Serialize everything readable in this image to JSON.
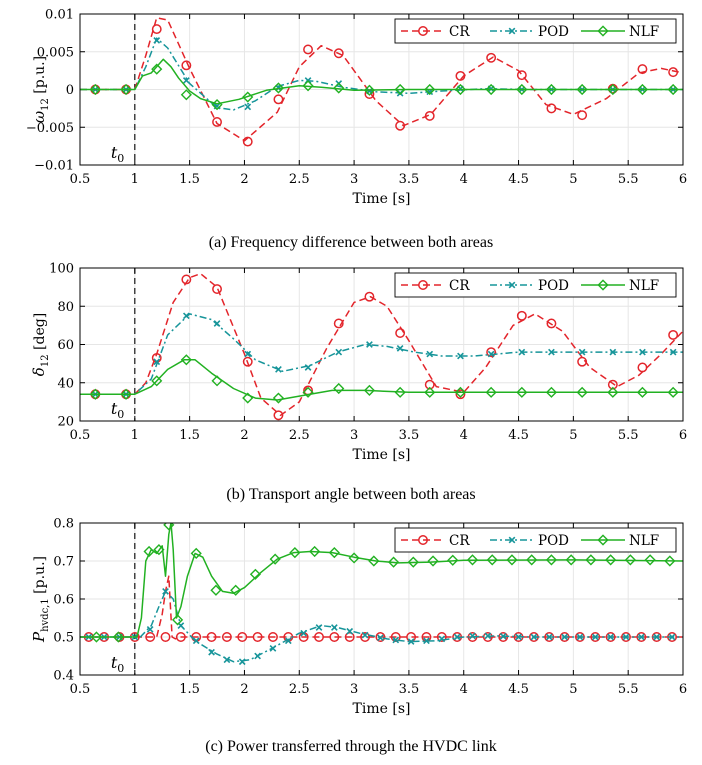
{
  "colors": {
    "CR": "#e3252b",
    "POD": "#17959a",
    "NLF": "#22b122",
    "grid": "#e6e6e6"
  },
  "chart_data": [
    {
      "type": "line",
      "caption": "(a) Frequency difference between both areas",
      "xlabel": "Time [s]",
      "ylabel_main": "ω",
      "ylabel_sub": "12",
      "ylabel_unit": " [p.u.]",
      "xlim": [
        0.5,
        6
      ],
      "ylim": [
        -0.01,
        0.01
      ],
      "xticks": [
        0.5,
        1,
        1.5,
        2,
        2.5,
        3,
        3.5,
        4,
        4.5,
        5,
        5.5,
        6
      ],
      "xticklabels": [
        "0.5",
        "1",
        "1.5",
        "2",
        "2.5",
        "3",
        "3.5",
        "4",
        "4.5",
        "5",
        "5.5",
        "6"
      ],
      "yticks": [
        -0.01,
        -0.005,
        0,
        0.005,
        0.01
      ],
      "yticklabels": [
        "−0.01",
        "−0.005",
        "0",
        "0.005",
        "0.01"
      ],
      "grid": true,
      "legend_position": "top-right",
      "vline_x": 1,
      "vline_label": "t",
      "vline_label_sub": "0",
      "series": [
        {
          "name": "CR",
          "style": "dashed",
          "marker": "circle",
          "x": [
            0.5,
            1,
            1.1,
            1.2,
            1.3,
            1.5,
            1.75,
            2,
            2.3,
            2.5,
            2.7,
            2.9,
            3.2,
            3.45,
            3.7,
            4,
            4.27,
            4.5,
            4.75,
            5,
            5.3,
            5.6,
            5.8,
            6
          ],
          "y": [
            0,
            0,
            0.0045,
            0.0095,
            0.0092,
            0.0028,
            -0.0045,
            -0.0068,
            -0.003,
            0.003,
            0.0058,
            0.0045,
            -0.0015,
            -0.0048,
            -0.0033,
            0.0018,
            0.0043,
            0.0025,
            -0.002,
            -0.0033,
            -0.0012,
            0.0022,
            0.0028,
            0.0022
          ],
          "marker_x": [
            0.64,
            0.92,
            1.2,
            1.47,
            1.75,
            2.03,
            2.31,
            2.58,
            2.86,
            3.14,
            3.42,
            3.69,
            3.97,
            4.25,
            4.53,
            4.8,
            5.08,
            5.36,
            5.63,
            5.91
          ],
          "marker_y": [
            0,
            0,
            0.008,
            0.0032,
            -0.0043,
            -0.0069,
            -0.0013,
            0.0053,
            0.0048,
            -0.0006,
            -0.0048,
            -0.0035,
            0.0018,
            0.0042,
            0.0019,
            -0.0025,
            -0.0034,
            0.0001,
            0.0027,
            0.0023
          ]
        },
        {
          "name": "POD",
          "style": "dashdot",
          "marker": "cross",
          "x": [
            0.5,
            1,
            1.1,
            1.2,
            1.3,
            1.5,
            1.75,
            1.9,
            2.1,
            2.3,
            2.5,
            2.65,
            2.9,
            3.2,
            3.5,
            3.8,
            4.2,
            4.6,
            6
          ],
          "y": [
            0,
            0,
            0.003,
            0.0068,
            0.0055,
            0.0008,
            -0.0024,
            -0.0027,
            -0.0015,
            0.0004,
            0.0012,
            0.0011,
            0.0003,
            -0.0003,
            -0.0005,
            -0.0002,
            0.0001,
            0,
            0
          ],
          "marker_x": [
            0.64,
            0.92,
            1.2,
            1.47,
            1.75,
            2.03,
            2.31,
            2.58,
            2.86,
            3.14,
            3.42,
            3.69,
            3.97,
            4.25,
            4.53,
            4.8,
            5.08,
            5.36,
            5.63,
            5.91
          ],
          "marker_y": [
            0,
            0,
            0.0065,
            0.0012,
            -0.0022,
            -0.0023,
            0.0002,
            0.0012,
            0.0008,
            -0.0002,
            -0.0005,
            -0.0003,
            0.0001,
            0.0001,
            0,
            0,
            0,
            0,
            0,
            0
          ]
        },
        {
          "name": "NLF",
          "style": "solid",
          "marker": "diamond",
          "x": [
            0.5,
            1,
            1.07,
            1.15,
            1.2,
            1.26,
            1.33,
            1.4,
            1.5,
            1.6,
            1.75,
            1.95,
            2.2,
            2.5,
            2.7,
            3,
            3.5,
            6
          ],
          "y": [
            0,
            0,
            0.0018,
            0.0022,
            0.003,
            0.004,
            0.003,
            0.0015,
            -0.0002,
            -0.0012,
            -0.0019,
            -0.0013,
            -0.0001,
            0.0005,
            0.0003,
            -0.0001,
            0,
            0
          ],
          "marker_x": [
            0.64,
            0.92,
            1.2,
            1.47,
            1.75,
            2.03,
            2.31,
            2.58,
            2.86,
            3.14,
            3.42,
            3.69,
            3.97,
            4.25,
            4.53,
            4.8,
            5.08,
            5.36,
            5.63,
            5.91
          ],
          "marker_y": [
            0,
            0,
            0.0027,
            -0.0007,
            -0.002,
            -0.001,
            0.0002,
            0.0005,
            0.0002,
            -0.0001,
            0,
            0,
            0,
            0,
            0,
            0,
            0,
            0,
            0,
            0
          ]
        }
      ]
    },
    {
      "type": "line",
      "caption": "(b) Transport angle between both areas",
      "xlabel": "Time [s]",
      "ylabel_main": "δ",
      "ylabel_sub": "12",
      "ylabel_unit": " [deg]",
      "xlim": [
        0.5,
        6
      ],
      "ylim": [
        20,
        100
      ],
      "xticks": [
        0.5,
        1,
        1.5,
        2,
        2.5,
        3,
        3.5,
        4,
        4.5,
        5,
        5.5,
        6
      ],
      "xticklabels": [
        "0.5",
        "1",
        "1.5",
        "2",
        "2.5",
        "3",
        "3.5",
        "4",
        "4.5",
        "5",
        "5.5",
        "6"
      ],
      "yticks": [
        20,
        40,
        60,
        80,
        100
      ],
      "yticklabels": [
        "20",
        "40",
        "60",
        "80",
        "100"
      ],
      "grid": true,
      "legend_position": "top-right",
      "vline_x": 1,
      "vline_label": "t",
      "vline_label_sub": "0",
      "series": [
        {
          "name": "CR",
          "style": "dashed",
          "marker": "circle",
          "x": [
            0.5,
            1,
            1.1,
            1.2,
            1.35,
            1.5,
            1.6,
            1.75,
            2,
            2.15,
            2.33,
            2.5,
            2.75,
            3,
            3.15,
            3.3,
            3.5,
            3.75,
            4,
            4.2,
            4.45,
            4.65,
            4.9,
            5.15,
            5.4,
            5.6,
            5.8,
            6
          ],
          "y": [
            34,
            34,
            40,
            55,
            82,
            95,
            97,
            90,
            55,
            32,
            23,
            30,
            58,
            82,
            85,
            80,
            62,
            38,
            35,
            48,
            70,
            76,
            67,
            48,
            38,
            44,
            55,
            67
          ],
          "marker_x": [
            0.64,
            0.92,
            1.2,
            1.47,
            1.75,
            2.03,
            2.31,
            2.58,
            2.86,
            3.14,
            3.42,
            3.69,
            3.97,
            4.25,
            4.53,
            4.8,
            5.08,
            5.36,
            5.63,
            5.91
          ],
          "marker_y": [
            34,
            34,
            53,
            94,
            89,
            51,
            23,
            36,
            71,
            85,
            66,
            39,
            34,
            56,
            75,
            71,
            51,
            39,
            48,
            65
          ]
        },
        {
          "name": "POD",
          "style": "dashdot",
          "marker": "cross",
          "x": [
            0.5,
            1,
            1.15,
            1.3,
            1.5,
            1.7,
            1.9,
            2.1,
            2.35,
            2.6,
            2.85,
            3.1,
            3.3,
            3.55,
            3.8,
            4.1,
            4.5,
            5,
            6
          ],
          "y": [
            34,
            34,
            42,
            65,
            76,
            73,
            63,
            52,
            46,
            49,
            56,
            60,
            59,
            56,
            54,
            54,
            56,
            56,
            56
          ],
          "marker_x": [
            0.64,
            0.92,
            1.2,
            1.47,
            1.75,
            2.03,
            2.31,
            2.58,
            2.86,
            3.14,
            3.42,
            3.69,
            3.97,
            4.25,
            4.53,
            4.8,
            5.08,
            5.36,
            5.63,
            5.91
          ],
          "marker_y": [
            34,
            34,
            51,
            75,
            71,
            55,
            47,
            48,
            56,
            60,
            58,
            55,
            54,
            55,
            56,
            56,
            56,
            56,
            56,
            56
          ]
        },
        {
          "name": "NLF",
          "style": "solid",
          "marker": "diamond",
          "x": [
            0.5,
            1,
            1.15,
            1.3,
            1.45,
            1.55,
            1.7,
            1.9,
            2.1,
            2.3,
            2.5,
            2.8,
            3.1,
            3.5,
            4,
            6
          ],
          "y": [
            34,
            34,
            38,
            47,
            52,
            52,
            45,
            37,
            32,
            31,
            33,
            36,
            36,
            35,
            35,
            35
          ],
          "marker_x": [
            0.64,
            0.92,
            1.2,
            1.47,
            1.75,
            2.03,
            2.31,
            2.58,
            2.86,
            3.14,
            3.42,
            3.69,
            3.97,
            4.25,
            4.53,
            4.8,
            5.08,
            5.36,
            5.63,
            5.91
          ],
          "marker_y": [
            34,
            34,
            41,
            52,
            41,
            32,
            32,
            35,
            37,
            36,
            35,
            35,
            35,
            35,
            35,
            35,
            35,
            35,
            35,
            35
          ]
        }
      ]
    },
    {
      "type": "line",
      "caption": "(c) Power transferred through the HVDC link",
      "xlabel": "Time [s]",
      "ylabel_main": "P",
      "ylabel_sub": "hvdc,1",
      "ylabel_unit": " [p.u.]",
      "xlim": [
        0.5,
        6
      ],
      "ylim": [
        0.4,
        0.8
      ],
      "xticks": [
        0.5,
        1,
        1.5,
        2,
        2.5,
        3,
        3.5,
        4,
        4.5,
        5,
        5.5,
        6
      ],
      "xticklabels": [
        "0.5",
        "1",
        "1.5",
        "2",
        "2.5",
        "3",
        "3.5",
        "4",
        "4.5",
        "5",
        "5.5",
        "6"
      ],
      "yticks": [
        0.4,
        0.5,
        0.6,
        0.7,
        0.8
      ],
      "yticklabels": [
        "0.4",
        "0.5",
        "0.6",
        "0.7",
        "0.8"
      ],
      "grid": true,
      "legend_position": "top-right",
      "vline_x": 1,
      "vline_label": "t",
      "vline_label_sub": "0",
      "series": [
        {
          "name": "CR",
          "style": "dashed",
          "marker": "circle",
          "x": [
            0.5,
            1.2,
            1.25,
            1.28,
            1.31,
            1.34,
            1.37,
            1.4,
            6
          ],
          "y": [
            0.5,
            0.5,
            0.56,
            0.62,
            0.66,
            0.5,
            0.495,
            0.5,
            0.5
          ],
          "marker_x": [
            0.58,
            0.72,
            0.86,
            1,
            1.14,
            1.28,
            1.42,
            1.56,
            1.7,
            1.84,
            1.98,
            2.12,
            2.26,
            2.4,
            2.54,
            2.68,
            2.82,
            2.96,
            3.1,
            3.24,
            3.38,
            3.52,
            3.66,
            3.8,
            3.94,
            4.08,
            4.22,
            4.36,
            4.5,
            4.64,
            4.78,
            4.92,
            5.06,
            5.2,
            5.34,
            5.48,
            5.62,
            5.76,
            5.9
          ],
          "marker_y": [
            0.5,
            0.5,
            0.5,
            0.5,
            0.5,
            0.5,
            0.5,
            0.5,
            0.5,
            0.5,
            0.5,
            0.5,
            0.5,
            0.5,
            0.5,
            0.5,
            0.5,
            0.5,
            0.5,
            0.5,
            0.5,
            0.5,
            0.5,
            0.5,
            0.5,
            0.5,
            0.5,
            0.5,
            0.5,
            0.5,
            0.5,
            0.5,
            0.5,
            0.5,
            0.5,
            0.5,
            0.5,
            0.5,
            0.5
          ]
        },
        {
          "name": "POD",
          "style": "dashdot",
          "marker": "cross",
          "x": [
            0.5,
            1.05,
            1.15,
            1.22,
            1.28,
            1.35,
            1.42,
            1.55,
            1.75,
            1.9,
            2.05,
            2.25,
            2.5,
            2.7,
            2.85,
            3.05,
            3.3,
            3.5,
            3.75,
            4,
            4.3,
            4.6,
            5,
            6
          ],
          "y": [
            0.5,
            0.5,
            0.53,
            0.58,
            0.62,
            0.6,
            0.53,
            0.49,
            0.455,
            0.435,
            0.44,
            0.47,
            0.51,
            0.53,
            0.525,
            0.51,
            0.495,
            0.488,
            0.49,
            0.5,
            0.503,
            0.5,
            0.5,
            0.5
          ],
          "marker_x": [
            0.58,
            0.72,
            0.86,
            1,
            1.14,
            1.28,
            1.42,
            1.56,
            1.7,
            1.84,
            1.98,
            2.12,
            2.26,
            2.4,
            2.54,
            2.68,
            2.82,
            2.96,
            3.1,
            3.24,
            3.38,
            3.52,
            3.66,
            3.8,
            3.94,
            4.08,
            4.22,
            4.36,
            4.5,
            4.64,
            4.78,
            4.92,
            5.06,
            5.2,
            5.34,
            5.48,
            5.62,
            5.76,
            5.9
          ],
          "marker_y": [
            0.5,
            0.5,
            0.5,
            0.5,
            0.52,
            0.62,
            0.53,
            0.49,
            0.46,
            0.44,
            0.435,
            0.45,
            0.47,
            0.49,
            0.51,
            0.525,
            0.525,
            0.515,
            0.505,
            0.498,
            0.492,
            0.488,
            0.49,
            0.495,
            0.5,
            0.503,
            0.503,
            0.502,
            0.5,
            0.5,
            0.5,
            0.5,
            0.5,
            0.5,
            0.5,
            0.5,
            0.5,
            0.5,
            0.5
          ]
        },
        {
          "name": "NLF",
          "style": "solid",
          "marker": "diamond",
          "x": [
            0.5,
            1.02,
            1.06,
            1.1,
            1.15,
            1.2,
            1.25,
            1.28,
            1.31,
            1.33,
            1.35,
            1.38,
            1.42,
            1.48,
            1.55,
            1.62,
            1.7,
            1.8,
            1.9,
            2,
            2.15,
            2.3,
            2.45,
            2.6,
            2.8,
            3,
            3.2,
            3.4,
            3.7,
            4,
            5,
            6
          ],
          "y": [
            0.5,
            0.5,
            0.55,
            0.7,
            0.73,
            0.72,
            0.74,
            0.66,
            0.77,
            0.8,
            0.73,
            0.55,
            0.58,
            0.66,
            0.72,
            0.71,
            0.66,
            0.62,
            0.615,
            0.63,
            0.67,
            0.705,
            0.722,
            0.725,
            0.722,
            0.71,
            0.7,
            0.695,
            0.697,
            0.702,
            0.703,
            0.7
          ],
          "marker_x": [
            0.65,
            0.85,
            1.13,
            1.22,
            1.31,
            1.39,
            1.56,
            1.74,
            1.92,
            2.1,
            2.28,
            2.46,
            2.64,
            2.82,
            3,
            3.18,
            3.36,
            3.54,
            3.72,
            3.9,
            4.08,
            4.26,
            4.44,
            4.62,
            4.8,
            4.98,
            5.16,
            5.34,
            5.52,
            5.7,
            5.88
          ],
          "marker_y": [
            0.5,
            0.5,
            0.725,
            0.73,
            0.795,
            0.545,
            0.72,
            0.623,
            0.623,
            0.665,
            0.705,
            0.722,
            0.725,
            0.722,
            0.708,
            0.7,
            0.697,
            0.697,
            0.7,
            0.702,
            0.703,
            0.703,
            0.703,
            0.703,
            0.703,
            0.703,
            0.703,
            0.703,
            0.703,
            0.703,
            0.7
          ]
        }
      ]
    }
  ]
}
